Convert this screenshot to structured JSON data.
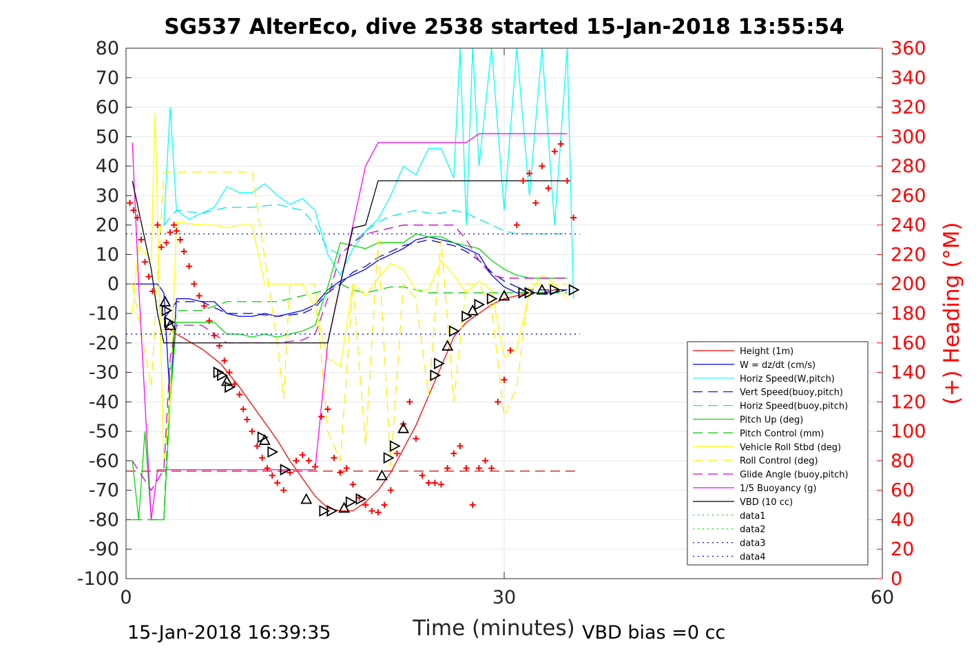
{
  "chart_data": {
    "type": "line",
    "title": "SG537 AlterEco, dive 2538 started 15-Jan-2018 13:55:54",
    "xlabel": "Time (minutes)",
    "ylabel": "",
    "y2label": "(+) Heading (°M)",
    "xlim": [
      0,
      60
    ],
    "ylim": [
      -100,
      80
    ],
    "y2lim": [
      0,
      360
    ],
    "xticks": [
      "0",
      "30",
      "60"
    ],
    "yticks": [
      "80",
      "70",
      "60",
      "50",
      "40",
      "30",
      "20",
      "10",
      "0",
      "-10",
      "-20",
      "-30",
      "-40",
      "-50",
      "-60",
      "-70",
      "-80",
      "-90",
      "-100"
    ],
    "y2ticks": [
      "360",
      "340",
      "320",
      "300",
      "280",
      "260",
      "240",
      "220",
      "200",
      "180",
      "160",
      "140",
      "120",
      "100",
      "80",
      "60",
      "40",
      "20",
      "0"
    ],
    "grid": true,
    "legend_position": "bottom-right",
    "footer_left": "15-Jan-2018 16:39:35",
    "footer_right": "VBD bias =0 cc",
    "colors": {
      "right_axis": "#ff0000",
      "axis": "#262626"
    },
    "series": [
      {
        "name": "Height (1m)",
        "color": "#ff0000",
        "style": "solid",
        "x": [
          3,
          4,
          6,
          7.5,
          9,
          10.5,
          12,
          13,
          14,
          15,
          16,
          17,
          18,
          19,
          20,
          21,
          22,
          23,
          24,
          25,
          26,
          27,
          28,
          29,
          30,
          31,
          32,
          33,
          34,
          35
        ],
        "y": [
          -14,
          -17,
          -22,
          -27,
          -35,
          -44,
          -53,
          -60,
          -66,
          -72,
          -76,
          -77,
          -77,
          -74,
          -70,
          -64,
          -56,
          -48,
          -38,
          -28,
          -18,
          -13,
          -10,
          -7,
          -5,
          -4,
          -3,
          -3,
          -2,
          -2
        ]
      },
      {
        "name": "W = dz/dt (cm/s)",
        "color": "#0000ff",
        "style": "solid",
        "x": [
          0.5,
          2,
          2.5,
          3,
          3.5,
          4,
          5,
          6,
          7,
          8,
          9,
          10,
          11,
          12,
          13,
          14,
          15,
          16,
          17,
          18,
          19,
          20,
          21,
          22,
          23,
          24,
          25,
          26,
          27,
          28,
          29,
          30,
          31,
          32,
          33,
          34,
          35
        ],
        "y": [
          0,
          0,
          0,
          -3,
          -40,
          -5,
          -5,
          -6,
          -6,
          -10,
          -11,
          -11,
          -10,
          -11,
          -10,
          -9,
          -7,
          -2,
          1,
          3,
          5,
          8,
          10,
          12,
          15,
          16,
          15,
          14,
          12,
          10,
          3,
          -1,
          -3,
          -3,
          -3,
          -3,
          -2
        ]
      },
      {
        "name": "Horiz Speed(W,pitch)",
        "color": "#00ffff",
        "style": "solid",
        "x": [
          3,
          3.5,
          4,
          5,
          6,
          7,
          8,
          9,
          10,
          11,
          12,
          13,
          14,
          15,
          16,
          17,
          18,
          19,
          20,
          21,
          22,
          23,
          24,
          25,
          26,
          26.5,
          27,
          27.5,
          28,
          29,
          30,
          31,
          32,
          33,
          34,
          35,
          35.5
        ],
        "y": [
          20,
          60,
          25,
          22,
          24,
          26,
          33,
          31,
          31,
          34,
          30,
          27,
          29,
          25,
          10,
          3,
          12,
          18,
          22,
          30,
          40,
          37,
          46,
          46,
          36,
          80,
          20,
          80,
          40,
          80,
          25,
          80,
          30,
          80,
          20,
          80,
          -5
        ]
      },
      {
        "name": "Vert Speed(buoy,pitch)",
        "color": "#0000cd",
        "style": "dashed",
        "x": [
          3,
          4,
          6,
          8,
          10,
          12,
          14,
          15,
          16,
          17,
          18,
          19,
          20,
          21,
          22,
          23,
          24,
          25,
          26,
          27,
          28,
          29,
          30,
          31,
          32,
          33,
          34,
          35
        ],
        "y": [
          -12,
          -6,
          -6,
          -10,
          -10,
          -11,
          -10,
          -8,
          -3,
          0,
          4,
          6,
          9,
          11,
          13,
          14,
          15,
          14,
          13,
          11,
          8,
          4,
          1,
          -1,
          -2,
          -2,
          -2,
          -2
        ]
      },
      {
        "name": "Horiz Speed(buoy,pitch)",
        "color": "#00e5e5",
        "style": "dashed",
        "x": [
          3,
          4,
          6,
          8,
          10,
          12,
          14,
          15,
          16,
          17,
          18,
          19,
          20,
          21,
          22,
          23,
          24,
          25,
          26,
          27,
          28,
          29,
          30,
          31,
          32,
          33,
          34,
          35
        ],
        "y": [
          20,
          25,
          24,
          26,
          26,
          27,
          25,
          20,
          12,
          10,
          14,
          18,
          21,
          23,
          24,
          25,
          24,
          24,
          25,
          24,
          22,
          20,
          18,
          17,
          17,
          17,
          17,
          17
        ]
      },
      {
        "name": "Pitch Up (deg)",
        "color": "#00dd00",
        "style": "solid",
        "x": [
          0.5,
          1,
          1.5,
          2,
          2.5,
          3,
          3.5,
          4,
          5,
          6,
          7,
          8,
          9,
          10,
          11,
          12,
          13,
          14,
          15,
          16,
          17,
          18,
          19,
          20,
          21,
          22,
          23,
          24,
          25,
          26,
          27,
          28,
          29,
          30,
          31,
          32,
          33,
          34,
          35
        ],
        "y": [
          -60,
          -80,
          -50,
          -80,
          -80,
          -80,
          -40,
          -13,
          -13,
          -13,
          -13,
          -17,
          -17,
          -18,
          -17,
          -18,
          -17,
          -16,
          -14,
          -1,
          14,
          13,
          12,
          14,
          14,
          14,
          17,
          16,
          16,
          14,
          13,
          12,
          8,
          5,
          3,
          2,
          2,
          2,
          2
        ]
      },
      {
        "name": "Pitch Control (mm)",
        "color": "#00cc00",
        "style": "dashed",
        "x": [
          0.5,
          3,
          3.5,
          4,
          6,
          8,
          10,
          12,
          14,
          15,
          16,
          17,
          18,
          19,
          20,
          21,
          22,
          23,
          24,
          25,
          26,
          27,
          28,
          29,
          30,
          31,
          32,
          33,
          34,
          35
        ],
        "y": [
          -80,
          -80,
          -30,
          -9,
          -9,
          -6,
          -6,
          -6,
          -4,
          -3,
          -2,
          0,
          -2,
          -3,
          -2,
          -1,
          -1,
          -2,
          -3,
          -3,
          -3,
          -3,
          -3,
          -3,
          -3,
          -3,
          -3,
          -3,
          -3,
          -3
        ]
      },
      {
        "name": "Vehicle Roll Stbd (deg)",
        "color": "#ffff00",
        "style": "solid",
        "x": [
          0.5,
          1,
          2,
          2.3,
          2.6,
          3,
          3.5,
          4,
          6,
          7,
          8,
          9,
          10,
          11,
          12,
          13,
          14,
          15,
          16,
          17,
          18,
          19,
          20,
          21,
          22,
          23,
          24,
          25,
          26,
          27,
          28,
          29,
          30,
          31,
          32,
          33,
          34,
          35
        ],
        "y": [
          -10,
          13,
          8,
          58,
          5,
          -60,
          -40,
          21,
          20,
          20,
          19,
          20,
          20,
          0,
          0,
          0,
          0,
          -8,
          -25,
          -28,
          0,
          -4,
          2,
          7,
          5,
          -2,
          -2,
          8,
          3,
          -3,
          1,
          -2,
          -25,
          -22,
          -3,
          3,
          0,
          -5
        ]
      },
      {
        "name": "Roll Control (deg)",
        "color": "#ffee00",
        "style": "dashed",
        "x": [
          0.5,
          2,
          3,
          3.5,
          4,
          6,
          8,
          10,
          12,
          12.5,
          13,
          14,
          15,
          16,
          17,
          18,
          19,
          20,
          21,
          22,
          23,
          24,
          25,
          26,
          27,
          28,
          29,
          30,
          31,
          32,
          33,
          34,
          35
        ],
        "y": [
          0,
          -35,
          38,
          38,
          38,
          38,
          38,
          38,
          -20,
          -39,
          0,
          0,
          0,
          -50,
          -60,
          0,
          -55,
          15,
          -62,
          0,
          -5,
          -38,
          15,
          -40,
          0,
          0,
          -8,
          -45,
          -35,
          0,
          0,
          0,
          0
        ]
      },
      {
        "name": "Glide Angle (buoy,pitch)",
        "color": "#cc00cc",
        "style": "dashed",
        "x": [
          0.5,
          2,
          3,
          3.5,
          4,
          6,
          8,
          10,
          12,
          14,
          15,
          16,
          17,
          18,
          19,
          20,
          21,
          22,
          23,
          24,
          25,
          26,
          27,
          28,
          29,
          30,
          31,
          32,
          33,
          34,
          35
        ],
        "y": [
          -60,
          -70,
          -63,
          -25,
          -14,
          -14,
          -20,
          -20,
          -20,
          -19,
          -17,
          -5,
          10,
          14,
          17,
          18,
          19,
          20,
          20,
          20,
          20,
          20,
          15,
          8,
          3,
          2,
          2,
          2,
          2,
          2,
          2
        ]
      },
      {
        "name": "1/5 Buoyancy (g)",
        "color": "#ff00ff",
        "style": "solid",
        "x": [
          0.5,
          1,
          2,
          2.5,
          3,
          3.5,
          4,
          6,
          8,
          10,
          12,
          14,
          15,
          16,
          17,
          18,
          19,
          20,
          21,
          22,
          23,
          24,
          25,
          26,
          27,
          28,
          29,
          30,
          31,
          32,
          33,
          34,
          35
        ],
        "y": [
          48,
          0,
          -80,
          -63,
          -63,
          -63,
          -63,
          -63,
          -63,
          -63,
          -63,
          -63,
          -63,
          -20,
          0,
          20,
          40,
          48,
          48,
          48,
          48,
          48,
          48,
          48,
          48,
          51,
          51,
          51,
          51,
          51,
          51,
          51,
          51
        ]
      },
      {
        "name": "VBD (10 cc)",
        "color": "#000000",
        "style": "solid",
        "x": [
          0.5,
          2,
          2.5,
          3,
          3.5,
          4,
          6,
          8,
          10,
          12,
          14,
          15,
          16,
          17,
          18,
          19,
          20,
          21,
          22,
          23,
          24,
          25,
          26,
          27,
          28,
          29,
          30,
          31,
          32,
          33,
          34,
          35
        ],
        "y": [
          35,
          5,
          -10,
          -20,
          -20,
          -20,
          -20,
          -20,
          -20,
          -20,
          -20,
          -20,
          -20,
          0,
          19,
          20,
          35,
          35,
          35,
          35,
          35,
          35,
          35,
          35,
          35,
          35,
          35,
          35,
          35,
          35,
          35,
          35
        ]
      },
      {
        "name": "data1",
        "color": "#00dd00",
        "style": "dotted",
        "x": [],
        "y": []
      },
      {
        "name": "data2",
        "color": "#00dd00",
        "style": "dotted",
        "x": [],
        "y": []
      },
      {
        "name": "data3",
        "color": "#0000ff",
        "style": "dotted",
        "x": [
          0,
          36
        ],
        "y": [
          17,
          17
        ]
      },
      {
        "name": "data4",
        "color": "#0000ff",
        "style": "dotted",
        "x": [
          0,
          36
        ],
        "y": [
          -17,
          -17
        ]
      }
    ],
    "reference_line": {
      "color": "#cc0000",
      "style": "dashed",
      "x": [
        0,
        36
      ],
      "y": [
        -63.5,
        -63.5
      ]
    },
    "heading_points": {
      "color": "#ff0000",
      "marker": "+",
      "x": [
        0.3,
        0.6,
        0.9,
        1.2,
        1.5,
        1.8,
        2.1,
        2.5,
        2.8,
        3.2,
        3.5,
        3.8,
        4,
        4.3,
        4.6,
        5,
        5.4,
        5.8,
        6.2,
        6.6,
        7,
        7.4,
        7.8,
        8.2,
        8.6,
        9,
        9.3,
        9.6,
        10,
        10.4,
        10.8,
        11.2,
        11.6,
        12,
        12.5,
        13,
        13.5,
        14,
        14.5,
        15,
        15.5,
        16,
        16.5,
        17,
        17.5,
        18,
        18.5,
        19,
        19.5,
        20,
        20.5,
        21,
        21.5,
        22,
        22.5,
        23,
        23.5,
        24,
        24.5,
        25,
        25.5,
        26,
        26.5,
        27,
        27.5,
        28,
        28.5,
        29,
        29.5,
        30,
        30.5,
        31,
        31.5,
        32,
        32.5,
        33,
        33.5,
        34,
        34.5,
        35,
        35.5
      ],
      "y": [
        255,
        250,
        245,
        230,
        215,
        205,
        195,
        240,
        225,
        228,
        235,
        240,
        236,
        230,
        222,
        212,
        200,
        192,
        185,
        175,
        165,
        158,
        148,
        140,
        132,
        125,
        115,
        108,
        100,
        90,
        82,
        75,
        70,
        65,
        60,
        72,
        80,
        84,
        80,
        76,
        110,
        115,
        82,
        72,
        75,
        64,
        55,
        50,
        46,
        45,
        50,
        60,
        85,
        105,
        120,
        95,
        70,
        65,
        65,
        64,
        75,
        85,
        90,
        75,
        50,
        75,
        80,
        75,
        120,
        135,
        155,
        240,
        270,
        275,
        255,
        280,
        265,
        290,
        295,
        270,
        245
      ]
    },
    "triangle_points": {
      "color": "#000000",
      "marker": "triangle",
      "x": [
        3.1,
        3.2,
        3.4,
        3.5,
        7.3,
        7.6,
        8,
        8.2,
        10.8,
        11,
        11.6,
        12.6,
        14.3,
        15.7,
        16.3,
        17.3,
        17.8,
        18.6,
        20.3,
        20.8,
        21.3,
        22,
        24.5,
        24.8,
        25.5,
        26,
        27,
        27.5,
        28,
        29,
        30,
        31.5,
        32,
        33,
        34,
        35.5
      ],
      "y": [
        -6,
        -9,
        -13,
        -14,
        -30,
        -31,
        -33,
        -35,
        -52,
        -53,
        -57,
        -63,
        -73,
        -77,
        -77,
        -76,
        -74,
        -73,
        -65,
        -59,
        -55,
        -49,
        -31,
        -27,
        -21,
        -16,
        -11,
        -9,
        -7,
        -5,
        -4,
        -3,
        -3,
        -2,
        -2,
        -2
      ]
    }
  }
}
